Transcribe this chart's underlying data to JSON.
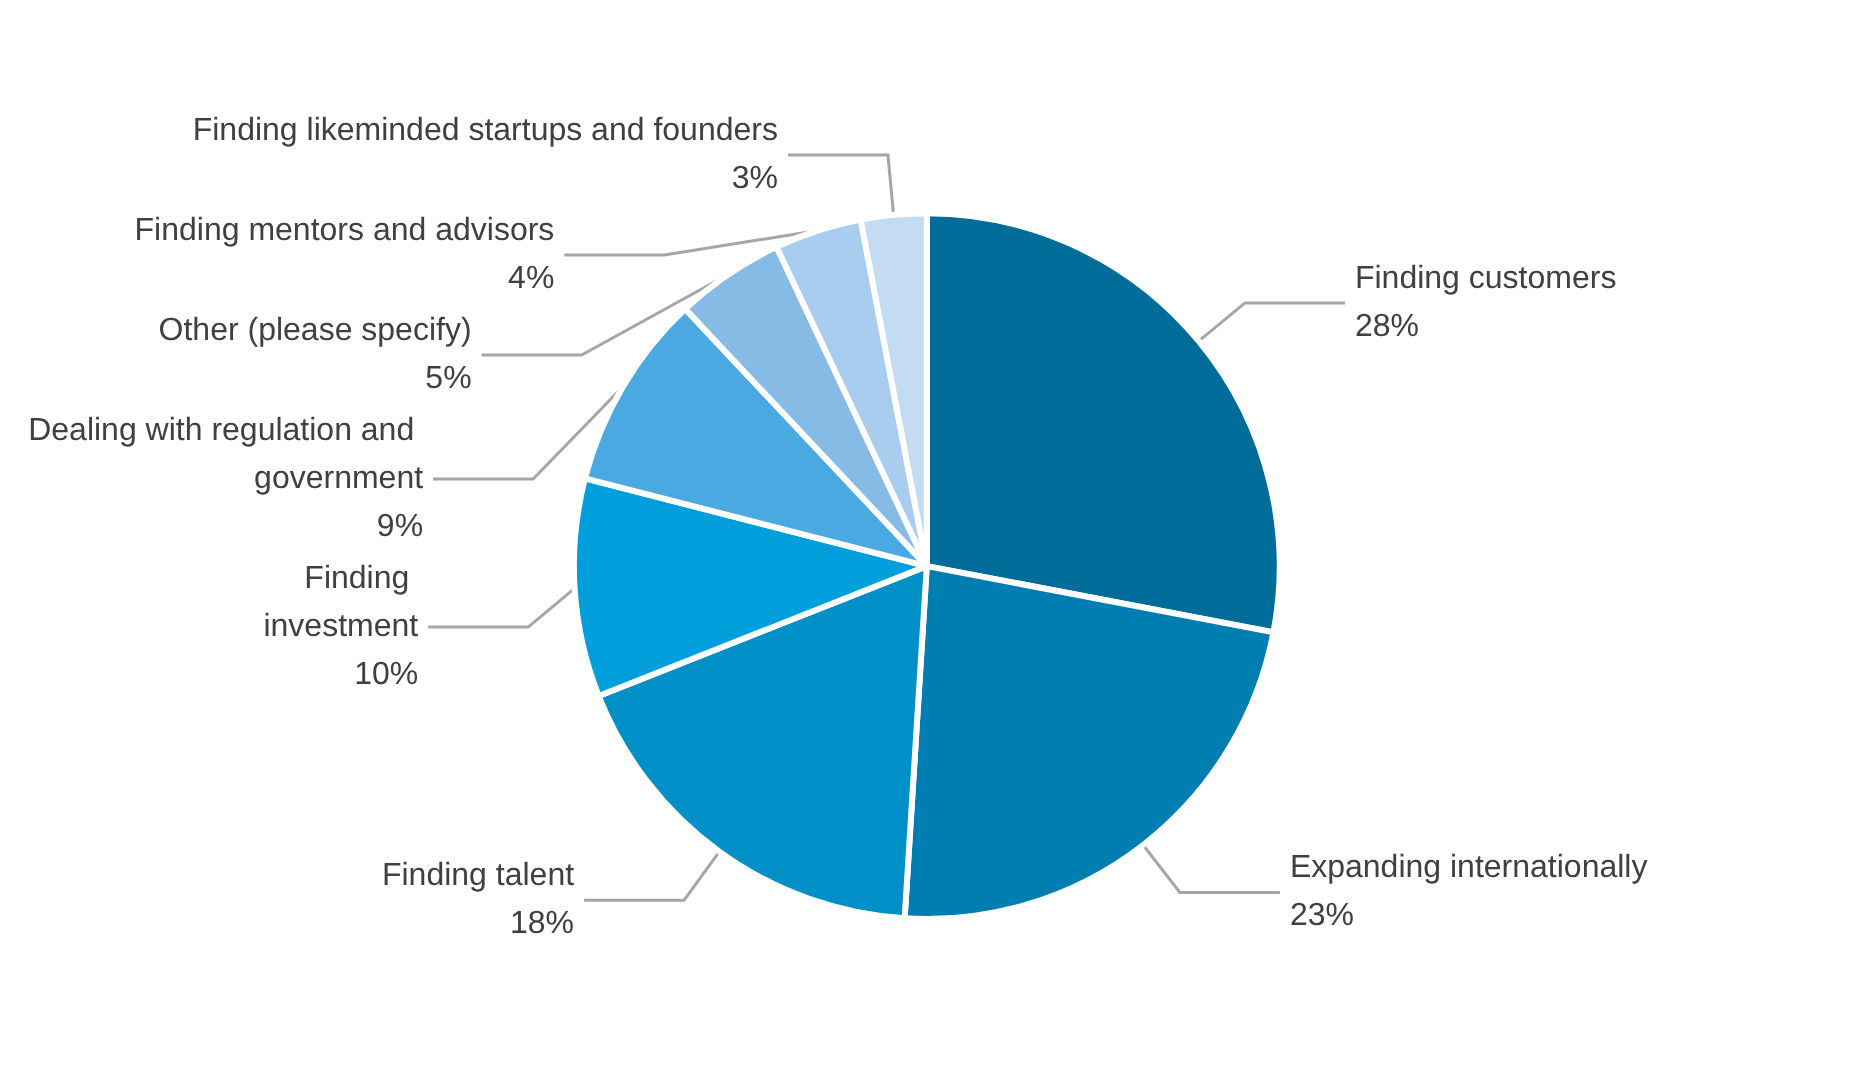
{
  "chart_data": {
    "type": "pie",
    "categories": [
      "Finding customers",
      "Expanding internationally",
      "Finding talent",
      "Finding investment",
      "Dealing with regulation and government",
      "Other (please specify)",
      "Finding mentors and advisors",
      "Finding likeminded startups and founders"
    ],
    "values": [
      28,
      23,
      18,
      10,
      9,
      5,
      4,
      3
    ],
    "colors": [
      "#006c9a",
      "#007eb1",
      "#008fc6",
      "#009edb",
      "#4aa9e1",
      "#86bbe5",
      "#a8cdee",
      "#c4dcf2"
    ],
    "value_labels": [
      "28%",
      "23%",
      "18%",
      "10%",
      "9%",
      "5%",
      "4%",
      "3%"
    ],
    "data_labels": true,
    "legend": false
  }
}
